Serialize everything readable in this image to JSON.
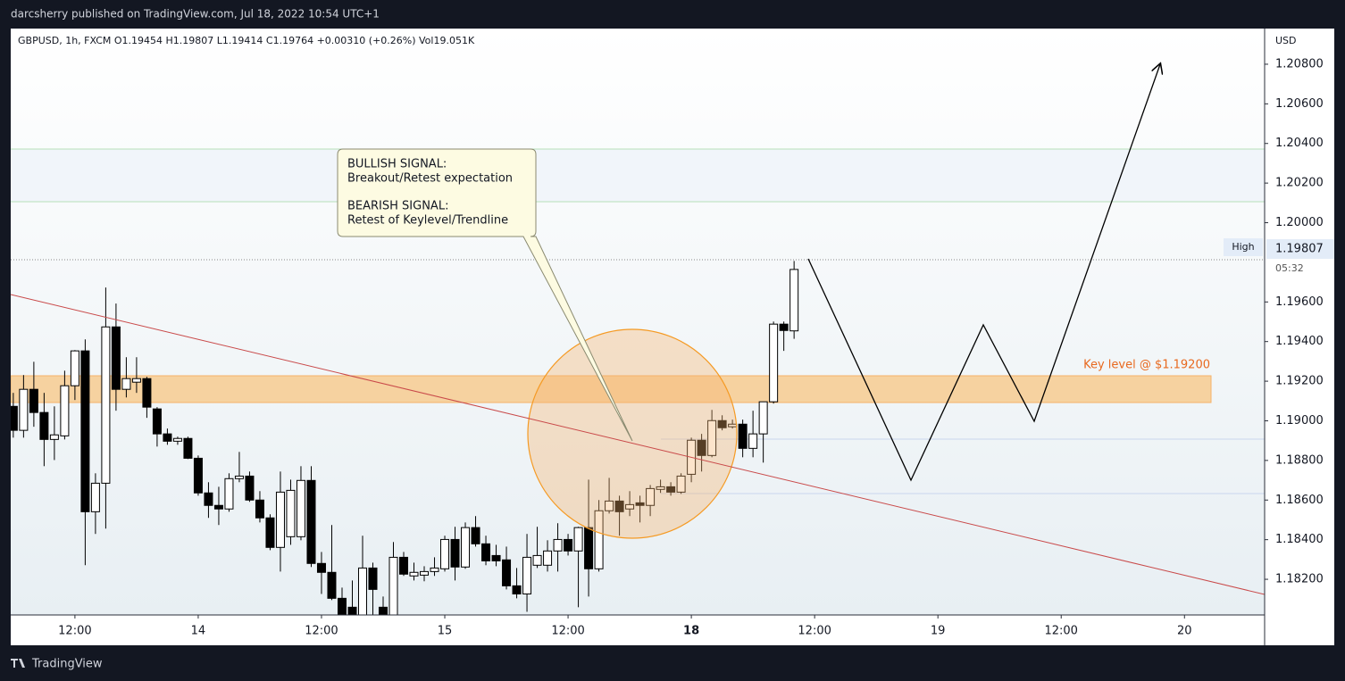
{
  "chart_data": {
    "type": "candlestick",
    "header": "darcsherry published on TradingView.com, Jul 18, 2022 10:54 UTC+1",
    "legend_text": "GBPUSD, 1h, FXCM  O1.19454  H1.19807  L1.19414  C1.19764  +0.00310 (+0.26%)  Vol19.051K",
    "y_axis_label": "USD",
    "high_label": "High",
    "high_price_label": "1.19807",
    "countdown": "05:32",
    "key_level_label": "Key level @ $1.19200",
    "annotation_lines": [
      "BULLISH SIGNAL:",
      "Breakout/Retest expectation",
      "BEARISH SIGNAL:",
      "Retest of Keylevel/Trendline"
    ],
    "footer": "TradingView",
    "up_color": "#ffffff",
    "down_color": "#000000",
    "grid": false,
    "xlim": [
      -6.25,
      115.8
    ],
    "xticks": [
      {
        "value": 0,
        "label": "12:00"
      },
      {
        "value": 12,
        "label": "14"
      },
      {
        "value": 24,
        "label": "12:00"
      },
      {
        "value": 36,
        "label": "15"
      },
      {
        "value": 48,
        "label": "12:00"
      },
      {
        "value": 60,
        "label": "18"
      },
      {
        "value": 72,
        "label": "12:00"
      },
      {
        "value": 84,
        "label": "19"
      },
      {
        "value": 96,
        "label": "12:00"
      },
      {
        "value": 108,
        "label": "20"
      }
    ],
    "ylim": [
      1.1802,
      1.2098
    ],
    "yticks": [
      {
        "value": 1.208,
        "label": "1.20800"
      },
      {
        "value": 1.206,
        "label": "1.20600"
      },
      {
        "value": 1.204,
        "label": "1.20400"
      },
      {
        "value": 1.202,
        "label": "1.20200"
      },
      {
        "value": 1.2,
        "label": "1.20000"
      },
      {
        "value": 1.196,
        "label": "1.19600"
      },
      {
        "value": 1.194,
        "label": "1.19400"
      },
      {
        "value": 1.192,
        "label": "1.19200"
      },
      {
        "value": 1.19,
        "label": "1.19000"
      },
      {
        "value": 1.188,
        "label": "1.18800"
      },
      {
        "value": 1.186,
        "label": "1.18600"
      },
      {
        "value": 1.184,
        "label": "1.18400"
      },
      {
        "value": 1.182,
        "label": "1.18200"
      }
    ],
    "candles": [
      {
        "x": -6,
        "open": 1.19073,
        "high": 1.19141,
        "low": 1.18915,
        "close": 1.18952
      },
      {
        "x": -5,
        "open": 1.18952,
        "high": 1.19231,
        "low": 1.18915,
        "close": 1.19159
      },
      {
        "x": -4,
        "open": 1.19159,
        "high": 1.19298,
        "low": 1.1897,
        "close": 1.19042
      },
      {
        "x": -3,
        "open": 1.19042,
        "high": 1.19141,
        "low": 1.18771,
        "close": 1.18906
      },
      {
        "x": -2,
        "open": 1.18906,
        "high": 1.19073,
        "low": 1.18802,
        "close": 1.18929
      },
      {
        "x": -1,
        "open": 1.18924,
        "high": 1.19253,
        "low": 1.18906,
        "close": 1.19177
      },
      {
        "x": 0,
        "open": 1.19177,
        "high": 1.19357,
        "low": 1.19105,
        "close": 1.19353
      },
      {
        "x": 1,
        "open": 1.19353,
        "high": 1.19411,
        "low": 1.18271,
        "close": 1.18541
      },
      {
        "x": 2,
        "open": 1.18541,
        "high": 1.18735,
        "low": 1.18429,
        "close": 1.18685
      },
      {
        "x": 3,
        "open": 1.18685,
        "high": 1.19673,
        "low": 1.18456,
        "close": 1.19474
      },
      {
        "x": 4,
        "open": 1.19474,
        "high": 1.19592,
        "low": 1.19051,
        "close": 1.19159
      },
      {
        "x": 5,
        "open": 1.19159,
        "high": 1.19321,
        "low": 1.19118,
        "close": 1.19213
      },
      {
        "x": 6,
        "open": 1.19195,
        "high": 1.19321,
        "low": 1.19141,
        "close": 1.19213
      },
      {
        "x": 7,
        "open": 1.19213,
        "high": 1.19222,
        "low": 1.19015,
        "close": 1.19069
      },
      {
        "x": 8,
        "open": 1.1906,
        "high": 1.19069,
        "low": 1.1887,
        "close": 1.18934
      },
      {
        "x": 9,
        "open": 1.18934,
        "high": 1.18961,
        "low": 1.18879,
        "close": 1.18897
      },
      {
        "x": 10,
        "open": 1.18897,
        "high": 1.1892,
        "low": 1.18879,
        "close": 1.18911
      },
      {
        "x": 11,
        "open": 1.18911,
        "high": 1.1892,
        "low": 1.18807,
        "close": 1.18811
      },
      {
        "x": 12,
        "open": 1.18811,
        "high": 1.18825,
        "low": 1.18622,
        "close": 1.18636
      },
      {
        "x": 13,
        "open": 1.18636,
        "high": 1.1869,
        "low": 1.1851,
        "close": 1.18573
      },
      {
        "x": 14,
        "open": 1.18573,
        "high": 1.18667,
        "low": 1.18474,
        "close": 1.18555
      },
      {
        "x": 15,
        "open": 1.18555,
        "high": 1.18735,
        "low": 1.18541,
        "close": 1.18708
      },
      {
        "x": 16,
        "open": 1.18708,
        "high": 1.18843,
        "low": 1.1869,
        "close": 1.18721
      },
      {
        "x": 17,
        "open": 1.18721,
        "high": 1.18744,
        "low": 1.18591,
        "close": 1.186
      },
      {
        "x": 18,
        "open": 1.186,
        "high": 1.18645,
        "low": 1.18487,
        "close": 1.1851
      },
      {
        "x": 19,
        "open": 1.1851,
        "high": 1.18528,
        "low": 1.18347,
        "close": 1.18361
      },
      {
        "x": 20,
        "open": 1.18361,
        "high": 1.18744,
        "low": 1.18239,
        "close": 1.1864
      },
      {
        "x": 21,
        "open": 1.18415,
        "high": 1.18703,
        "low": 1.18374,
        "close": 1.18649
      },
      {
        "x": 22,
        "open": 1.18415,
        "high": 1.18771,
        "low": 1.18397,
        "close": 1.18699
      },
      {
        "x": 23,
        "open": 1.18699,
        "high": 1.18771,
        "low": 1.18262,
        "close": 1.1828
      },
      {
        "x": 24,
        "open": 1.1828,
        "high": 1.18338,
        "low": 1.18126,
        "close": 1.18235
      },
      {
        "x": 25,
        "open": 1.18235,
        "high": 1.18474,
        "low": 1.18095,
        "close": 1.18104
      },
      {
        "x": 26,
        "open": 1.18104,
        "high": 1.18158,
        "low": 1.18018,
        "close": 1.18018
      },
      {
        "x": 27,
        "open": 1.18059,
        "high": 1.18194,
        "low": 1.18018,
        "close": 1.18022
      },
      {
        "x": 28,
        "open": 1.18018,
        "high": 1.1842,
        "low": 1.18018,
        "close": 1.18257
      },
      {
        "x": 29,
        "open": 1.18257,
        "high": 1.18284,
        "low": 1.18018,
        "close": 1.18149
      },
      {
        "x": 30,
        "open": 1.18059,
        "high": 1.18113,
        "low": 1.18018,
        "close": 1.18022
      },
      {
        "x": 31,
        "open": 1.18018,
        "high": 1.18388,
        "low": 1.18018,
        "close": 1.18311
      },
      {
        "x": 32,
        "open": 1.18311,
        "high": 1.18338,
        "low": 1.18217,
        "close": 1.18226
      },
      {
        "x": 33,
        "open": 1.18217,
        "high": 1.18284,
        "low": 1.18194,
        "close": 1.18235
      },
      {
        "x": 34,
        "open": 1.18221,
        "high": 1.18266,
        "low": 1.1819,
        "close": 1.18239
      },
      {
        "x": 35,
        "open": 1.18239,
        "high": 1.18311,
        "low": 1.18217,
        "close": 1.18257
      },
      {
        "x": 36,
        "open": 1.18253,
        "high": 1.1842,
        "low": 1.18239,
        "close": 1.18401
      },
      {
        "x": 37,
        "open": 1.18401,
        "high": 1.18465,
        "low": 1.18194,
        "close": 1.18262
      },
      {
        "x": 38,
        "open": 1.18262,
        "high": 1.18487,
        "low": 1.18253,
        "close": 1.18461
      },
      {
        "x": 39,
        "open": 1.18461,
        "high": 1.18519,
        "low": 1.18365,
        "close": 1.18379
      },
      {
        "x": 40,
        "open": 1.18379,
        "high": 1.1842,
        "low": 1.18271,
        "close": 1.18293
      },
      {
        "x": 41,
        "open": 1.1832,
        "high": 1.18374,
        "low": 1.18266,
        "close": 1.18293
      },
      {
        "x": 42,
        "open": 1.18298,
        "high": 1.18365,
        "low": 1.18149,
        "close": 1.18167
      },
      {
        "x": 43,
        "open": 1.18167,
        "high": 1.18257,
        "low": 1.18104,
        "close": 1.18126
      },
      {
        "x": 44,
        "open": 1.18126,
        "high": 1.18429,
        "low": 1.18036,
        "close": 1.18311
      },
      {
        "x": 45,
        "open": 1.18271,
        "high": 1.18465,
        "low": 1.18257,
        "close": 1.1832
      },
      {
        "x": 46,
        "open": 1.18271,
        "high": 1.18397,
        "low": 1.18239,
        "close": 1.18343
      },
      {
        "x": 47,
        "open": 1.18343,
        "high": 1.18483,
        "low": 1.18239,
        "close": 1.18401
      },
      {
        "x": 48,
        "open": 1.18401,
        "high": 1.18429,
        "low": 1.1832,
        "close": 1.18343
      },
      {
        "x": 49,
        "open": 1.18343,
        "high": 1.18465,
        "low": 1.18059,
        "close": 1.18461
      },
      {
        "x": 50,
        "open": 1.18461,
        "high": 1.18703,
        "low": 1.18113,
        "close": 1.18253
      },
      {
        "x": 51,
        "open": 1.18253,
        "high": 1.186,
        "low": 1.18239,
        "close": 1.18546
      },
      {
        "x": 52,
        "open": 1.18546,
        "high": 1.18712,
        "low": 1.18532,
        "close": 1.18595
      },
      {
        "x": 53,
        "open": 1.18595,
        "high": 1.18622,
        "low": 1.1842,
        "close": 1.18541
      },
      {
        "x": 54,
        "open": 1.18555,
        "high": 1.18645,
        "low": 1.18519,
        "close": 1.18577
      },
      {
        "x": 55,
        "open": 1.18586,
        "high": 1.18622,
        "low": 1.18487,
        "close": 1.18573
      },
      {
        "x": 56,
        "open": 1.18573,
        "high": 1.18676,
        "low": 1.18519,
        "close": 1.18658
      },
      {
        "x": 57,
        "open": 1.18654,
        "high": 1.18703,
        "low": 1.18636,
        "close": 1.18667
      },
      {
        "x": 58,
        "open": 1.18667,
        "high": 1.1869,
        "low": 1.18622,
        "close": 1.1864
      },
      {
        "x": 59,
        "open": 1.1864,
        "high": 1.18735,
        "low": 1.18631,
        "close": 1.18721
      },
      {
        "x": 60,
        "open": 1.1873,
        "high": 1.18915,
        "low": 1.1869,
        "close": 1.18902
      },
      {
        "x": 61,
        "open": 1.18902,
        "high": 1.18934,
        "low": 1.18744,
        "close": 1.18825
      },
      {
        "x": 62,
        "open": 1.18825,
        "high": 1.19055,
        "low": 1.18816,
        "close": 1.19001
      },
      {
        "x": 63,
        "open": 1.19001,
        "high": 1.19028,
        "low": 1.18952,
        "close": 1.18965
      },
      {
        "x": 64,
        "open": 1.1897,
        "high": 1.19006,
        "low": 1.18961,
        "close": 1.18983
      },
      {
        "x": 65,
        "open": 1.18983,
        "high": 1.19006,
        "low": 1.18816,
        "close": 1.18861
      },
      {
        "x": 66,
        "open": 1.18861,
        "high": 1.19051,
        "low": 1.18816,
        "close": 1.18934
      },
      {
        "x": 67,
        "open": 1.18934,
        "high": 1.19096,
        "low": 1.18789,
        "close": 1.19096
      },
      {
        "x": 68,
        "open": 1.19096,
        "high": 1.19501,
        "low": 1.19087,
        "close": 1.19488
      },
      {
        "x": 69,
        "open": 1.19488,
        "high": 1.19501,
        "low": 1.19353,
        "close": 1.19456
      },
      {
        "x": 70,
        "open": 1.19454,
        "high": 1.19807,
        "low": 1.19414,
        "close": 1.19764
      }
    ]
  }
}
